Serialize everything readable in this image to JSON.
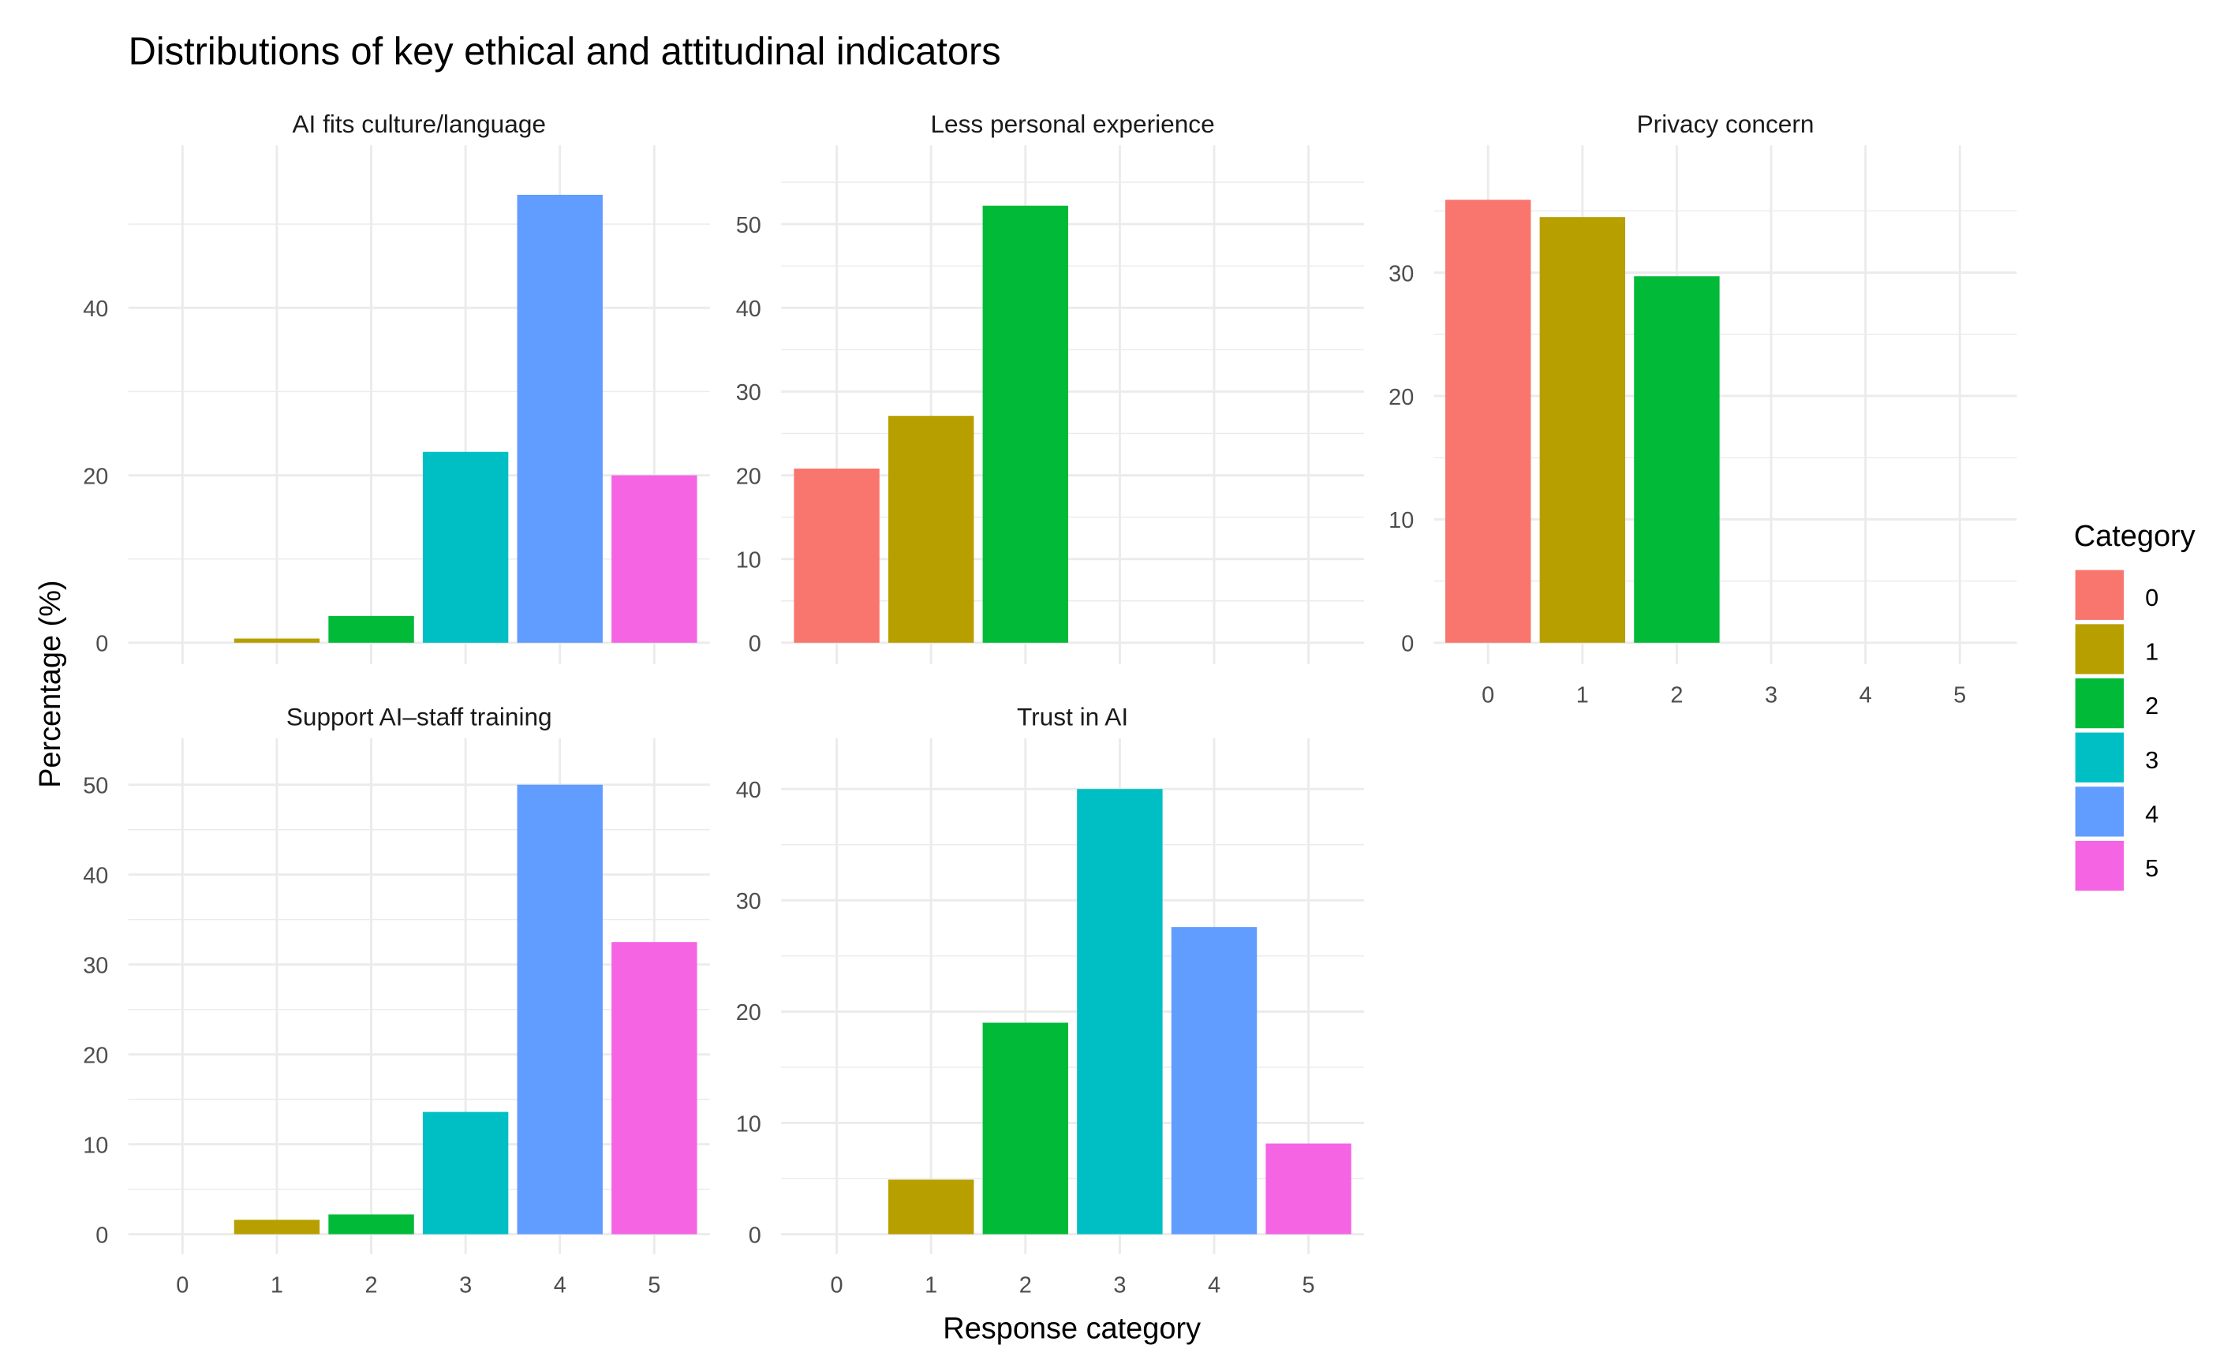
{
  "chart_data": {
    "type": "bar",
    "title": "Distributions of key ethical and attitudinal indicators",
    "xlabel": "Response category",
    "ylabel": "Percentage (%)",
    "legend": {
      "title": "Category",
      "placement": "right",
      "entries": [
        "0",
        "1",
        "2",
        "3",
        "4",
        "5"
      ]
    },
    "categories": [
      "0",
      "1",
      "2",
      "3",
      "4",
      "5"
    ],
    "colors": [
      "#F8766D",
      "#B79F00",
      "#00BA38",
      "#00BFC4",
      "#619CFF",
      "#F564E3"
    ],
    "grid": true,
    "panels": [
      {
        "name": "AI fits culture/language",
        "values": [
          0,
          0.5,
          3.2,
          22.8,
          53.5,
          20.0
        ],
        "ylim": [
          0,
          56
        ],
        "yticks": [
          0,
          20,
          40
        ],
        "show_xticks": false
      },
      {
        "name": "Less personal experience",
        "values": [
          20.8,
          27.1,
          52.2,
          0,
          0,
          0
        ],
        "ylim": [
          0,
          56
        ],
        "yticks": [
          0,
          10,
          20,
          30,
          40,
          50
        ],
        "show_xticks": false
      },
      {
        "name": "Privacy concern",
        "values": [
          35.9,
          34.5,
          29.7,
          0,
          0,
          0
        ],
        "ylim": [
          0,
          38
        ],
        "yticks": [
          0,
          10,
          20,
          30
        ],
        "show_xticks": true
      },
      {
        "name": "Support AI–staff training",
        "values": [
          0,
          1.6,
          2.2,
          13.6,
          50.0,
          32.5
        ],
        "ylim": [
          0,
          52
        ],
        "yticks": [
          0,
          10,
          20,
          30,
          40,
          50
        ],
        "show_xticks": true
      },
      {
        "name": "Trust in AI",
        "values": [
          0,
          4.9,
          19.0,
          40.0,
          27.6,
          8.15
        ],
        "ylim": [
          0,
          42
        ],
        "yticks": [
          0,
          10,
          20,
          30,
          40
        ],
        "show_xticks": true
      }
    ]
  }
}
